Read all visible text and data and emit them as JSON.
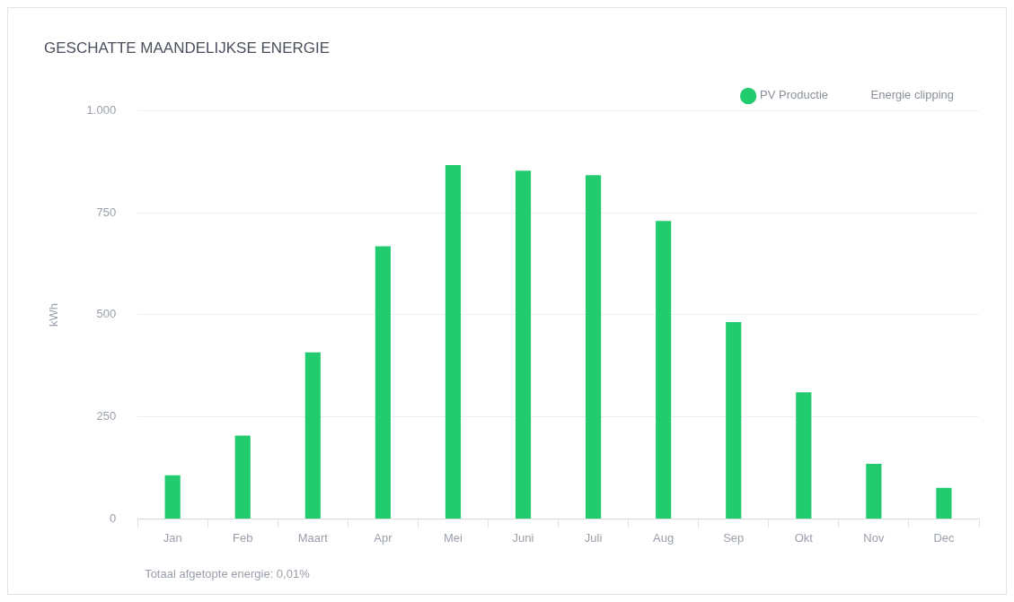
{
  "chart_data": {
    "type": "bar",
    "title": "GESCHATTE MAANDELIJKSE ENERGIE",
    "ylabel": "kWh",
    "categories": [
      "Jan",
      "Feb",
      "Maart",
      "Apr",
      "Mei",
      "Juni",
      "Juli",
      "Aug",
      "Sep",
      "Okt",
      "Nov",
      "Dec"
    ],
    "series": [
      {
        "name": "PV Productie",
        "color": "#22cc6e",
        "values": [
          107,
          204,
          408,
          668,
          867,
          853,
          842,
          730,
          482,
          310,
          135,
          76
        ]
      },
      {
        "name": "Energie clipping",
        "values": [
          null,
          null,
          null,
          null,
          null,
          null,
          null,
          null,
          null,
          null,
          null,
          null
        ]
      }
    ],
    "ylim": [
      0,
      1000
    ],
    "yticks": [
      0,
      250,
      500,
      750,
      {
        "value": 1000,
        "label": "1.000"
      }
    ],
    "grid": "y",
    "legend": "top right",
    "annotations": [
      "Totaal afgetopte energie: 0,01%"
    ]
  }
}
